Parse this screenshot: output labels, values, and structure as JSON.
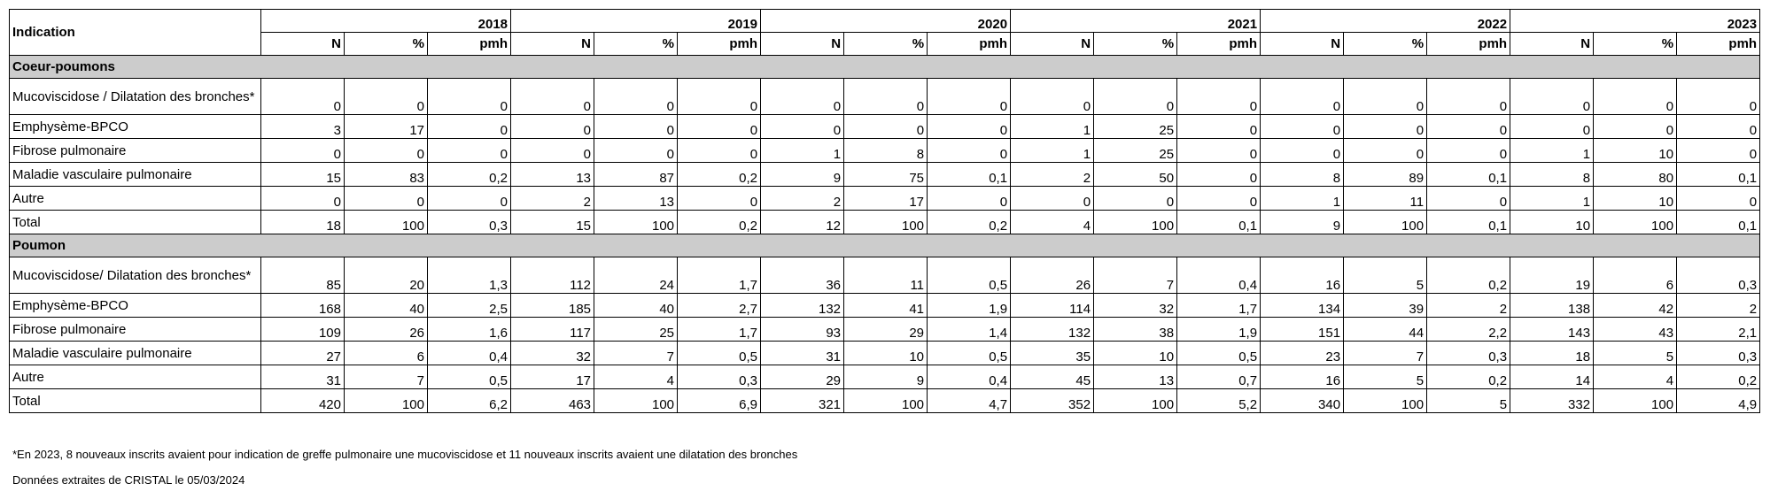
{
  "header": {
    "indication": "Indication",
    "years": [
      "2018",
      "2019",
      "2020",
      "2021",
      "2022",
      "2023"
    ],
    "sub": [
      "N",
      "%",
      "pmh"
    ]
  },
  "sections": [
    {
      "title": "Coeur-poumons",
      "rows": [
        {
          "label": "Mucoviscidose / Dilatation des bronches*",
          "tall": true,
          "values": [
            "0",
            "0",
            "0",
            "0",
            "0",
            "0",
            "0",
            "0",
            "0",
            "0",
            "0",
            "0",
            "0",
            "0",
            "0",
            "0",
            "0",
            "0"
          ]
        },
        {
          "label": "Emphysème-BPCO",
          "values": [
            "3",
            "17",
            "0",
            "0",
            "0",
            "0",
            "0",
            "0",
            "0",
            "1",
            "25",
            "0",
            "0",
            "0",
            "0",
            "0",
            "0",
            "0"
          ]
        },
        {
          "label": "Fibrose pulmonaire",
          "values": [
            "0",
            "0",
            "0",
            "0",
            "0",
            "0",
            "1",
            "8",
            "0",
            "1",
            "25",
            "0",
            "0",
            "0",
            "0",
            "1",
            "10",
            "0"
          ]
        },
        {
          "label": "Maladie vasculaire pulmonaire",
          "values": [
            "15",
            "83",
            "0,2",
            "13",
            "87",
            "0,2",
            "9",
            "75",
            "0,1",
            "2",
            "50",
            "0",
            "8",
            "89",
            "0,1",
            "8",
            "80",
            "0,1"
          ]
        },
        {
          "label": "Autre",
          "values": [
            "0",
            "0",
            "0",
            "2",
            "13",
            "0",
            "2",
            "17",
            "0",
            "0",
            "0",
            "0",
            "1",
            "11",
            "0",
            "1",
            "10",
            "0"
          ]
        },
        {
          "label": "Total",
          "values": [
            "18",
            "100",
            "0,3",
            "15",
            "100",
            "0,2",
            "12",
            "100",
            "0,2",
            "4",
            "100",
            "0,1",
            "9",
            "100",
            "0,1",
            "10",
            "100",
            "0,1"
          ]
        }
      ]
    },
    {
      "title": "Poumon",
      "rows": [
        {
          "label": "Mucoviscidose/ Dilatation des bronches*",
          "tall": true,
          "values": [
            "85",
            "20",
            "1,3",
            "112",
            "24",
            "1,7",
            "36",
            "11",
            "0,5",
            "26",
            "7",
            "0,4",
            "16",
            "5",
            "0,2",
            "19",
            "6",
            "0,3"
          ]
        },
        {
          "label": "Emphysème-BPCO",
          "values": [
            "168",
            "40",
            "2,5",
            "185",
            "40",
            "2,7",
            "132",
            "41",
            "1,9",
            "114",
            "32",
            "1,7",
            "134",
            "39",
            "2",
            "138",
            "42",
            "2"
          ]
        },
        {
          "label": "Fibrose pulmonaire",
          "values": [
            "109",
            "26",
            "1,6",
            "117",
            "25",
            "1,7",
            "93",
            "29",
            "1,4",
            "132",
            "38",
            "1,9",
            "151",
            "44",
            "2,2",
            "143",
            "43",
            "2,1"
          ]
        },
        {
          "label": "Maladie vasculaire pulmonaire",
          "values": [
            "27",
            "6",
            "0,4",
            "32",
            "7",
            "0,5",
            "31",
            "10",
            "0,5",
            "35",
            "10",
            "0,5",
            "23",
            "7",
            "0,3",
            "18",
            "5",
            "0,3"
          ]
        },
        {
          "label": "Autre",
          "values": [
            "31",
            "7",
            "0,5",
            "17",
            "4",
            "0,3",
            "29",
            "9",
            "0,4",
            "45",
            "13",
            "0,7",
            "16",
            "5",
            "0,2",
            "14",
            "4",
            "0,2"
          ]
        },
        {
          "label": "Total",
          "values": [
            "420",
            "100",
            "6,2",
            "463",
            "100",
            "6,9",
            "321",
            "100",
            "4,7",
            "352",
            "100",
            "5,2",
            "340",
            "100",
            "5",
            "332",
            "100",
            "4,9"
          ]
        }
      ]
    }
  ],
  "footnote": "*En 2023, 8 nouveaux inscrits avaient pour indication de greffe pulmonaire une mucoviscidose et 11 nouveaux inscrits avaient une dilatation des bronches",
  "source": "Données extraites de CRISTAL le 05/03/2024"
}
